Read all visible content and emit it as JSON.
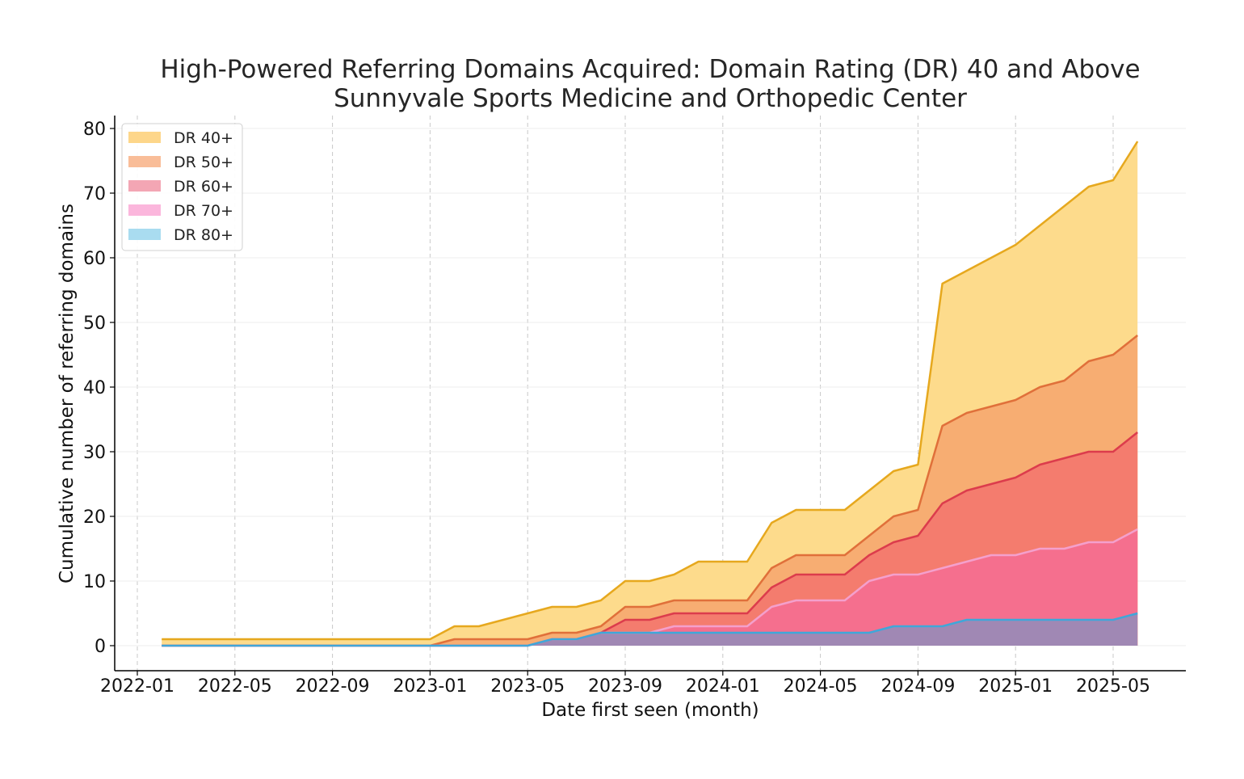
{
  "chart_data": {
    "type": "area",
    "title": "High-Powered Referring Domains Acquired: Domain Rating (DR) 40 and Above",
    "subtitle": "Sunnyvale Sports Medicine and Orthopedic Center",
    "xlabel": "Date first seen (month)",
    "ylabel": "Cumulative number of referring domains",
    "x_ticks": [
      "2022-01",
      "2022-05",
      "2022-09",
      "2023-01",
      "2023-05",
      "2023-09",
      "2024-01",
      "2024-05",
      "2024-09",
      "2025-01",
      "2025-05"
    ],
    "y_ticks": [
      0,
      10,
      20,
      30,
      40,
      50,
      60,
      70,
      80
    ],
    "ylim": [
      -4,
      82
    ],
    "grid": true,
    "legend_position": "top-left",
    "x": [
      "2022-02",
      "2022-03",
      "2022-04",
      "2022-05",
      "2022-06",
      "2022-07",
      "2022-08",
      "2022-09",
      "2022-10",
      "2022-11",
      "2022-12",
      "2023-01",
      "2023-02",
      "2023-03",
      "2023-04",
      "2023-05",
      "2023-06",
      "2023-07",
      "2023-08",
      "2023-09",
      "2023-10",
      "2023-11",
      "2023-12",
      "2024-01",
      "2024-02",
      "2024-03",
      "2024-04",
      "2024-05",
      "2024-06",
      "2024-07",
      "2024-08",
      "2024-09",
      "2024-10",
      "2024-11",
      "2024-12",
      "2025-01",
      "2025-02",
      "2025-03",
      "2025-04",
      "2025-05",
      "2025-06"
    ],
    "series": [
      {
        "name": "DR 40+",
        "fill": "#fddb8c",
        "line": "#e6a81e",
        "values": [
          1,
          1,
          1,
          1,
          1,
          1,
          1,
          1,
          1,
          1,
          1,
          1,
          3,
          3,
          4,
          5,
          6,
          6,
          7,
          10,
          10,
          11,
          13,
          13,
          13,
          19,
          21,
          21,
          21,
          24,
          27,
          28,
          56,
          58,
          60,
          62,
          65,
          68,
          71,
          72,
          78
        ]
      },
      {
        "name": "DR 50+",
        "fill": "#f7ad72",
        "line": "#e0703a",
        "values": [
          0,
          0,
          0,
          0,
          0,
          0,
          0,
          0,
          0,
          0,
          0,
          0,
          1,
          1,
          1,
          1,
          2,
          2,
          3,
          6,
          6,
          7,
          7,
          7,
          7,
          12,
          14,
          14,
          14,
          17,
          20,
          21,
          34,
          36,
          37,
          38,
          40,
          41,
          44,
          45,
          48
        ]
      },
      {
        "name": "DR 60+",
        "fill": "#f47c6e",
        "line": "#dc3c4c",
        "values": [
          0,
          0,
          0,
          0,
          0,
          0,
          0,
          0,
          0,
          0,
          0,
          0,
          0,
          0,
          0,
          0,
          1,
          1,
          2,
          4,
          4,
          5,
          5,
          5,
          5,
          9,
          11,
          11,
          11,
          14,
          16,
          17,
          22,
          24,
          25,
          26,
          28,
          29,
          30,
          30,
          33
        ]
      },
      {
        "name": "DR 70+",
        "fill": "#f56f8e",
        "line": "#f4a0cc",
        "values": [
          0,
          0,
          0,
          0,
          0,
          0,
          0,
          0,
          0,
          0,
          0,
          0,
          0,
          0,
          0,
          0,
          1,
          1,
          2,
          2,
          2,
          3,
          3,
          3,
          3,
          6,
          7,
          7,
          7,
          10,
          11,
          11,
          12,
          13,
          14,
          14,
          15,
          15,
          16,
          16,
          18
        ]
      },
      {
        "name": "DR 80+",
        "fill": "#a088b4",
        "line": "#3fa7d9",
        "values": [
          0,
          0,
          0,
          0,
          0,
          0,
          0,
          0,
          0,
          0,
          0,
          0,
          0,
          0,
          0,
          0,
          1,
          1,
          2,
          2,
          2,
          2,
          2,
          2,
          2,
          2,
          2,
          2,
          2,
          2,
          3,
          3,
          3,
          4,
          4,
          4,
          4,
          4,
          4,
          4,
          5
        ]
      }
    ],
    "legend": [
      {
        "label": "DR 40+",
        "swatch": "#fdd68a"
      },
      {
        "label": "DR 50+",
        "swatch": "#f9bd98"
      },
      {
        "label": "DR 60+",
        "swatch": "#f3a6b4"
      },
      {
        "label": "DR 70+",
        "swatch": "#fbb6dc"
      },
      {
        "label": "DR 80+",
        "swatch": "#a9dcf0"
      }
    ]
  }
}
